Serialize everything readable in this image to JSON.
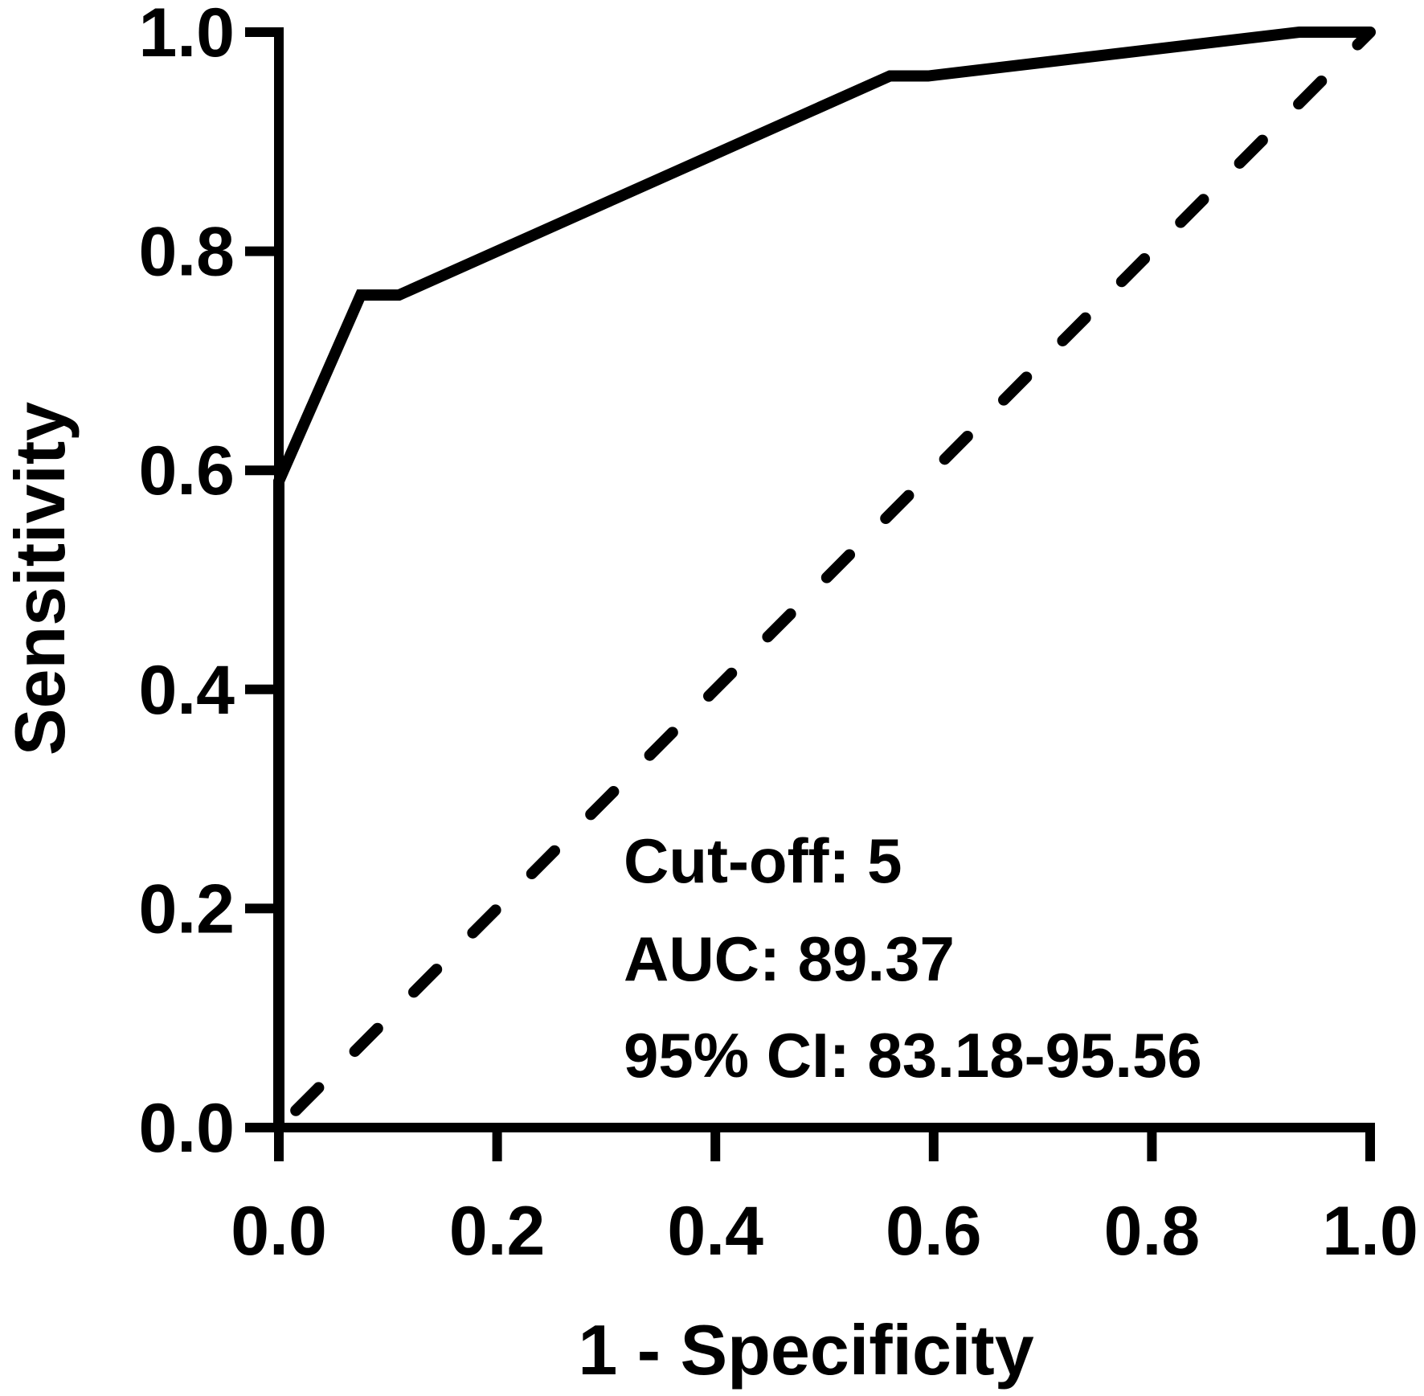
{
  "chart_data": {
    "type": "line",
    "title": "",
    "xlabel": "1 - Specificity",
    "ylabel": "Sensitivity",
    "xlim": [
      0,
      1
    ],
    "ylim": [
      0,
      1
    ],
    "x_ticks": [
      "0.0",
      "0.2",
      "0.4",
      "0.6",
      "0.8",
      "1.0"
    ],
    "y_ticks": [
      "0.0",
      "0.2",
      "0.4",
      "0.6",
      "0.8",
      "1.0"
    ],
    "grid": false,
    "legend": "none",
    "series": [
      {
        "style": "solid",
        "color": "#000000",
        "points": [
          [
            0.0,
            0.0
          ],
          [
            0.0,
            0.59
          ],
          [
            0.075,
            0.76
          ],
          [
            0.11,
            0.76
          ],
          [
            0.56,
            0.96
          ],
          [
            0.595,
            0.96
          ],
          [
            0.935,
            1.0
          ],
          [
            1.0,
            1.0
          ]
        ]
      },
      {
        "style": "dashed",
        "color": "#000000",
        "points": [
          [
            0.0,
            0.0
          ],
          [
            1.0,
            1.0
          ]
        ]
      }
    ],
    "annotations": [
      "Cut-off: 5",
      "AUC: 89.37",
      "95% CI: 83.18-95.56"
    ]
  }
}
